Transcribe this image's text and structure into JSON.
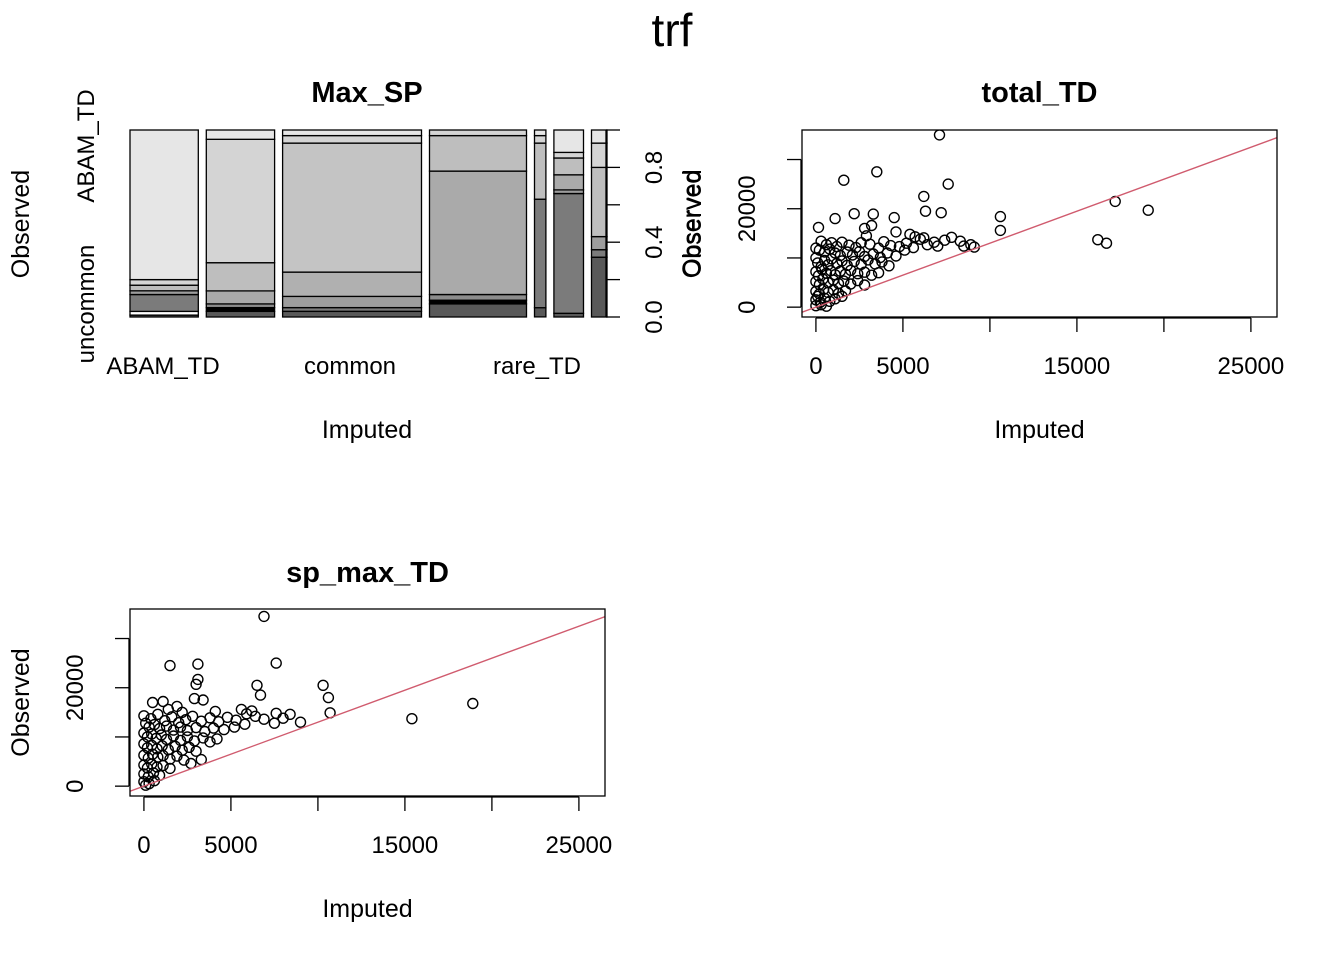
{
  "title": "trf",
  "chart_data": [
    {
      "type": "mosaic",
      "title": "Max_SP",
      "xlabel": "Imputed",
      "ylabel": "Observed",
      "x_tick_labels": [
        "ABAM_TD",
        "common",
        "rare_TD"
      ],
      "y_tick_labels": [
        "uncommon",
        "ABAM_TD"
      ],
      "y_axis_right": {
        "label": "Observed",
        "ticks": [
          0.0,
          0.4,
          0.8
        ],
        "tick_labels": [
          "0.0",
          "0.4",
          "0.8"
        ],
        "minor_ticks": [
          0.2,
          0.6,
          1.0
        ]
      },
      "columns": [
        {
          "weight": 0.15,
          "segments": [
            {
              "share": 0.01,
              "color": "#595959"
            },
            {
              "share": 0.02,
              "color": "#ffffff"
            },
            {
              "share": 0.09,
              "color": "#7b7b7b"
            },
            {
              "share": 0.02,
              "color": "#9d9d9d"
            },
            {
              "share": 0.03,
              "color": "#bcbcbc"
            },
            {
              "share": 0.03,
              "color": "#d4d4d4"
            },
            {
              "share": 0.8,
              "color": "#e6e6e6"
            }
          ]
        },
        {
          "weight": 0.15,
          "segments": [
            {
              "share": 0.03,
              "color": "#595959"
            },
            {
              "share": 0.02,
              "color": "#000000"
            },
            {
              "share": 0.02,
              "color": "#8c8c8c"
            },
            {
              "share": 0.07,
              "color": "#aaaaaa"
            },
            {
              "share": 0.15,
              "color": "#bebebe"
            },
            {
              "share": 0.66,
              "color": "#d4d4d4"
            },
            {
              "share": 0.05,
              "color": "#e6e6e6"
            }
          ]
        },
        {
          "weight": 0.305,
          "segments": [
            {
              "share": 0.03,
              "color": "#595959"
            },
            {
              "share": 0.02,
              "color": "#7b7b7b"
            },
            {
              "share": 0.06,
              "color": "#9d9d9d"
            },
            {
              "share": 0.13,
              "color": "#b0b0b0"
            },
            {
              "share": 0.69,
              "color": "#c4c4c4"
            },
            {
              "share": 0.04,
              "color": "#d4d4d4"
            },
            {
              "share": 0.03,
              "color": "#e6e6e6"
            }
          ]
        },
        {
          "weight": 0.213,
          "segments": [
            {
              "share": 0.07,
              "color": "#595959"
            },
            {
              "share": 0.02,
              "color": "#000000"
            },
            {
              "share": 0.03,
              "color": "#8c8c8c"
            },
            {
              "share": 0.66,
              "color": "#aaaaaa"
            },
            {
              "share": 0.19,
              "color": "#bebebe"
            },
            {
              "share": 0.03,
              "color": "#d4d4d4"
            }
          ]
        },
        {
          "weight": 0.025,
          "segments": [
            {
              "share": 0.05,
              "color": "#595959"
            },
            {
              "share": 0.58,
              "color": "#7b7b7b"
            },
            {
              "share": 0.3,
              "color": "#bebebe"
            },
            {
              "share": 0.04,
              "color": "#d4d4d4"
            },
            {
              "share": 0.03,
              "color": "#e6e6e6"
            }
          ]
        },
        {
          "weight": 0.065,
          "segments": [
            {
              "share": 0.02,
              "color": "#595959"
            },
            {
              "share": 0.64,
              "color": "#7b7b7b"
            },
            {
              "share": 0.02,
              "color": "#9d9d9d"
            },
            {
              "share": 0.08,
              "color": "#aaaaaa"
            },
            {
              "share": 0.09,
              "color": "#bebebe"
            },
            {
              "share": 0.03,
              "color": "#d4d4d4"
            },
            {
              "share": 0.12,
              "color": "#e6e6e6"
            }
          ]
        },
        {
          "weight": 0.034,
          "segments": [
            {
              "share": 0.32,
              "color": "#595959"
            },
            {
              "share": 0.04,
              "color": "#7b7b7b"
            },
            {
              "share": 0.07,
              "color": "#9d9d9d"
            },
            {
              "share": 0.37,
              "color": "#bebebe"
            },
            {
              "share": 0.13,
              "color": "#d4d4d4"
            },
            {
              "share": 0.07,
              "color": "#e6e6e6"
            }
          ]
        }
      ]
    },
    {
      "type": "scatter",
      "title": "total_TD",
      "xlabel": "Imputed",
      "ylabel": "Observed",
      "xlim": [
        -800,
        26500
      ],
      "ylim": [
        -2000,
        36000
      ],
      "x_ticks": [
        0,
        5000,
        10000,
        15000,
        20000,
        25000
      ],
      "x_tick_labels": [
        "0",
        "5000",
        "",
        "15000",
        "",
        "25000"
      ],
      "y_ticks": [
        0,
        10000,
        20000,
        30000
      ],
      "y_tick_labels": [
        "0",
        "",
        "20000",
        ""
      ],
      "fit_line": {
        "intercept": 0,
        "slope": 1.3
      },
      "points": [
        [
          7100,
          35000
        ],
        [
          3500,
          27500
        ],
        [
          1600,
          25800
        ],
        [
          7600,
          25000
        ],
        [
          6200,
          22500
        ],
        [
          17200,
          21500
        ],
        [
          19100,
          19700
        ],
        [
          2200,
          19000
        ],
        [
          3300,
          18900
        ],
        [
          6300,
          19500
        ],
        [
          7200,
          19200
        ],
        [
          10600,
          18400
        ],
        [
          1100,
          18000
        ],
        [
          4500,
          18200
        ],
        [
          3200,
          16600
        ],
        [
          150,
          16200
        ],
        [
          2800,
          16000
        ],
        [
          2900,
          14500
        ],
        [
          10600,
          15600
        ],
        [
          16200,
          13700
        ],
        [
          16700,
          13000
        ],
        [
          4600,
          15300
        ],
        [
          5400,
          14800
        ],
        [
          5700,
          14300
        ],
        [
          6200,
          14100
        ],
        [
          7800,
          14200
        ],
        [
          8300,
          13400
        ],
        [
          8900,
          12700
        ],
        [
          9100,
          12200
        ],
        [
          8500,
          12400
        ],
        [
          7400,
          13600
        ],
        [
          6800,
          13200
        ],
        [
          6000,
          13800
        ],
        [
          5200,
          13000
        ],
        [
          4800,
          12300
        ],
        [
          4300,
          12500
        ],
        [
          3900,
          13300
        ],
        [
          3600,
          12000
        ],
        [
          3100,
          12800
        ],
        [
          2600,
          13100
        ],
        [
          2300,
          12100
        ],
        [
          1900,
          12600
        ],
        [
          1500,
          13200
        ],
        [
          1200,
          12300
        ],
        [
          900,
          13100
        ],
        [
          600,
          12700
        ],
        [
          300,
          13400
        ],
        [
          0,
          12000
        ],
        [
          200,
          11600
        ],
        [
          500,
          11200
        ],
        [
          800,
          11800
        ],
        [
          1100,
          11000
        ],
        [
          1400,
          10500
        ],
        [
          1800,
          11200
        ],
        [
          2100,
          10600
        ],
        [
          2500,
          11300
        ],
        [
          2800,
          10300
        ],
        [
          3300,
          10800
        ],
        [
          3700,
          10100
        ],
        [
          4100,
          11000
        ],
        [
          4600,
          10400
        ],
        [
          5100,
          11600
        ],
        [
          5600,
          12100
        ],
        [
          6400,
          12700
        ],
        [
          7000,
          12400
        ],
        [
          0,
          10000
        ],
        [
          100,
          9000
        ],
        [
          300,
          8200
        ],
        [
          500,
          9500
        ],
        [
          700,
          8600
        ],
        [
          900,
          9800
        ],
        [
          1200,
          8900
        ],
        [
          1500,
          9400
        ],
        [
          1800,
          8500
        ],
        [
          2200,
          9300
        ],
        [
          2600,
          8700
        ],
        [
          3000,
          9600
        ],
        [
          3400,
          8800
        ],
        [
          3800,
          9200
        ],
        [
          4200,
          8400
        ],
        [
          0,
          7200
        ],
        [
          150,
          6400
        ],
        [
          350,
          7700
        ],
        [
          600,
          6900
        ],
        [
          850,
          7400
        ],
        [
          1100,
          6600
        ],
        [
          1400,
          7300
        ],
        [
          1700,
          6700
        ],
        [
          2000,
          7500
        ],
        [
          2400,
          6800
        ],
        [
          2800,
          7100
        ],
        [
          3200,
          6500
        ],
        [
          3600,
          7000
        ],
        [
          0,
          5200
        ],
        [
          200,
          4600
        ],
        [
          400,
          5700
        ],
        [
          700,
          5000
        ],
        [
          1000,
          5500
        ],
        [
          1300,
          4800
        ],
        [
          1600,
          5300
        ],
        [
          2000,
          4700
        ],
        [
          2400,
          5400
        ],
        [
          2800,
          4500
        ],
        [
          0,
          3200
        ],
        [
          200,
          2700
        ],
        [
          450,
          3600
        ],
        [
          700,
          3000
        ],
        [
          1000,
          3500
        ],
        [
          1300,
          2800
        ],
        [
          1700,
          3300
        ],
        [
          0,
          1500
        ],
        [
          250,
          1000
        ],
        [
          500,
          1800
        ],
        [
          800,
          1200
        ],
        [
          1100,
          1700
        ],
        [
          0,
          300
        ],
        [
          300,
          500
        ],
        [
          600,
          200
        ],
        [
          100,
          2200
        ],
        [
          1500,
          2200
        ]
      ]
    },
    {
      "type": "scatter",
      "title": "sp_max_TD",
      "xlabel": "Imputed",
      "ylabel": "Observed",
      "xlim": [
        -800,
        26500
      ],
      "ylim": [
        -2000,
        36000
      ],
      "x_ticks": [
        0,
        5000,
        10000,
        15000,
        20000,
        25000
      ],
      "x_tick_labels": [
        "0",
        "5000",
        "",
        "15000",
        "",
        "25000"
      ],
      "y_ticks": [
        0,
        10000,
        20000,
        30000
      ],
      "y_tick_labels": [
        "0",
        "",
        "20000",
        ""
      ],
      "fit_line": {
        "intercept": 0,
        "slope": 1.3
      },
      "points": [
        [
          6900,
          34500
        ],
        [
          7600,
          25000
        ],
        [
          1500,
          24500
        ],
        [
          3100,
          24800
        ],
        [
          3100,
          21700
        ],
        [
          3000,
          20700
        ],
        [
          6500,
          20500
        ],
        [
          10300,
          20500
        ],
        [
          6700,
          18500
        ],
        [
          10600,
          18000
        ],
        [
          2900,
          17800
        ],
        [
          3400,
          17500
        ],
        [
          1100,
          17200
        ],
        [
          500,
          17000
        ],
        [
          1900,
          16200
        ],
        [
          5600,
          15600
        ],
        [
          6200,
          15300
        ],
        [
          7600,
          14800
        ],
        [
          8400,
          14600
        ],
        [
          10700,
          14900
        ],
        [
          15400,
          13700
        ],
        [
          18900,
          16800
        ],
        [
          2200,
          15000
        ],
        [
          1400,
          15600
        ],
        [
          4100,
          15200
        ],
        [
          8000,
          13800
        ],
        [
          9000,
          13000
        ],
        [
          7500,
          12800
        ],
        [
          6900,
          13600
        ],
        [
          6400,
          14200
        ],
        [
          5900,
          14700
        ],
        [
          5300,
          13400
        ],
        [
          4800,
          14000
        ],
        [
          4300,
          13100
        ],
        [
          3800,
          13900
        ],
        [
          3300,
          13200
        ],
        [
          2800,
          14200
        ],
        [
          2400,
          13500
        ],
        [
          2000,
          12900
        ],
        [
          1600,
          14100
        ],
        [
          1200,
          13300
        ],
        [
          800,
          14600
        ],
        [
          400,
          13700
        ],
        [
          0,
          14300
        ],
        [
          100,
          12800
        ],
        [
          300,
          12000
        ],
        [
          600,
          12500
        ],
        [
          900,
          11700
        ],
        [
          1300,
          12200
        ],
        [
          1700,
          11400
        ],
        [
          2100,
          12000
        ],
        [
          2500,
          11300
        ],
        [
          3000,
          11900
        ],
        [
          3500,
          11100
        ],
        [
          4000,
          11800
        ],
        [
          4600,
          11500
        ],
        [
          5200,
          12000
        ],
        [
          5800,
          12600
        ],
        [
          0,
          10800
        ],
        [
          200,
          10000
        ],
        [
          450,
          10600
        ],
        [
          700,
          9700
        ],
        [
          1000,
          10400
        ],
        [
          1300,
          9500
        ],
        [
          1700,
          10200
        ],
        [
          2100,
          9300
        ],
        [
          2500,
          10000
        ],
        [
          2900,
          9200
        ],
        [
          3400,
          9800
        ],
        [
          3800,
          9000
        ],
        [
          4200,
          9600
        ],
        [
          0,
          8600
        ],
        [
          200,
          7800
        ],
        [
          450,
          8300
        ],
        [
          750,
          7600
        ],
        [
          1050,
          8200
        ],
        [
          1400,
          7400
        ],
        [
          1800,
          8100
        ],
        [
          2200,
          7300
        ],
        [
          2600,
          7900
        ],
        [
          3000,
          7100
        ],
        [
          0,
          6300
        ],
        [
          250,
          5700
        ],
        [
          500,
          6500
        ],
        [
          800,
          5900
        ],
        [
          1100,
          6200
        ],
        [
          1500,
          5500
        ],
        [
          1900,
          6100
        ],
        [
          2300,
          5300
        ],
        [
          0,
          4300
        ],
        [
          200,
          3700
        ],
        [
          450,
          4500
        ],
        [
          750,
          3900
        ],
        [
          1100,
          4200
        ],
        [
          1500,
          3600
        ],
        [
          0,
          2500
        ],
        [
          250,
          1900
        ],
        [
          550,
          2700
        ],
        [
          900,
          2200
        ],
        [
          0,
          900
        ],
        [
          300,
          500
        ],
        [
          600,
          1100
        ],
        [
          100,
          200
        ],
        [
          2700,
          4600
        ],
        [
          3300,
          5400
        ]
      ]
    }
  ]
}
